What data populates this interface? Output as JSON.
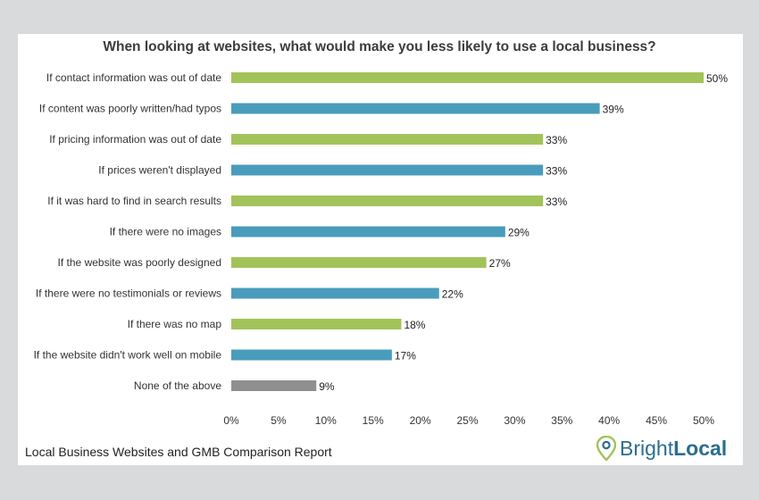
{
  "chart_data": {
    "type": "bar",
    "orientation": "horizontal",
    "title": "When looking at websites, what would make you less likely to use a local business?",
    "categories": [
      "If contact information was out of date",
      "If content was poorly written/had typos",
      "If pricing information was out of date",
      "If prices weren't displayed",
      "If it was hard to find in search results",
      "If there were no images",
      "If the website was poorly designed",
      "If there were no testimonials or reviews",
      "If there was no map",
      "If the website didn't work well on mobile",
      "None of the above"
    ],
    "values": [
      50,
      39,
      33,
      33,
      33,
      29,
      27,
      22,
      18,
      17,
      9
    ],
    "value_labels": [
      "50%",
      "39%",
      "33%",
      "33%",
      "33%",
      "29%",
      "27%",
      "22%",
      "18%",
      "17%",
      "9%"
    ],
    "bar_colors": [
      "#a2c35a",
      "#4a9cbc",
      "#a2c35a",
      "#4a9cbc",
      "#a2c35a",
      "#4a9cbc",
      "#a2c35a",
      "#4a9cbc",
      "#a2c35a",
      "#4a9cbc",
      "#8f8f8f"
    ],
    "xlim": [
      0,
      50
    ],
    "xticks": [
      0,
      5,
      10,
      15,
      20,
      25,
      30,
      35,
      40,
      45,
      50
    ],
    "xtick_labels": [
      "0%",
      "5%",
      "10%",
      "15%",
      "20%",
      "25%",
      "30%",
      "35%",
      "40%",
      "45%",
      "50%"
    ],
    "xlabel": "",
    "ylabel": "",
    "grid": false
  },
  "footer": {
    "report_name": "Local Business Websites and GMB Comparison Report"
  },
  "logo": {
    "part1": "Bright",
    "part2": "Local",
    "pin_color": "#a2c35a",
    "text_color": "#2a6e8e"
  }
}
